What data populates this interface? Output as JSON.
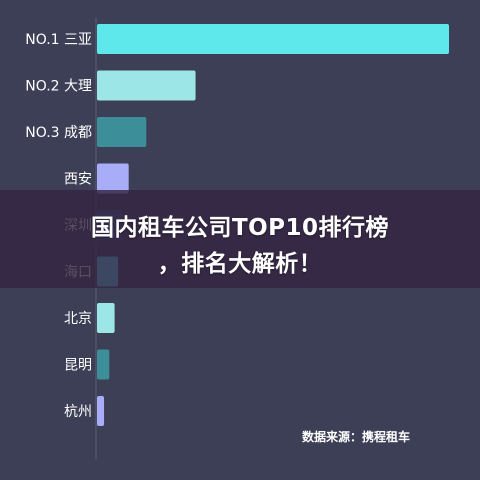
{
  "chart_data": {
    "type": "bar",
    "orientation": "horizontal",
    "categories": [
      "NO.1 三亚",
      "NO.2 大理",
      "NO.3 成都",
      "西安",
      "深圳",
      "海口",
      "北京",
      "昆明",
      "杭州"
    ],
    "values": [
      100,
      28,
      14,
      9,
      7,
      6,
      5,
      3.5,
      2
    ],
    "colors": [
      "#5ee8ec",
      "#9de6e8",
      "#3c8f98",
      "#a9acf7",
      "#3a5a8c",
      "#5ee8ec",
      "#9de6e8",
      "#3c8f98",
      "#a9acf7"
    ],
    "xlim": [
      0,
      100
    ],
    "grid": false,
    "legend": "none"
  },
  "banner": {
    "line1": "国内租车公司TOP10排行榜",
    "line2": "，排名大解析！"
  },
  "source": "数据来源：携程租车"
}
